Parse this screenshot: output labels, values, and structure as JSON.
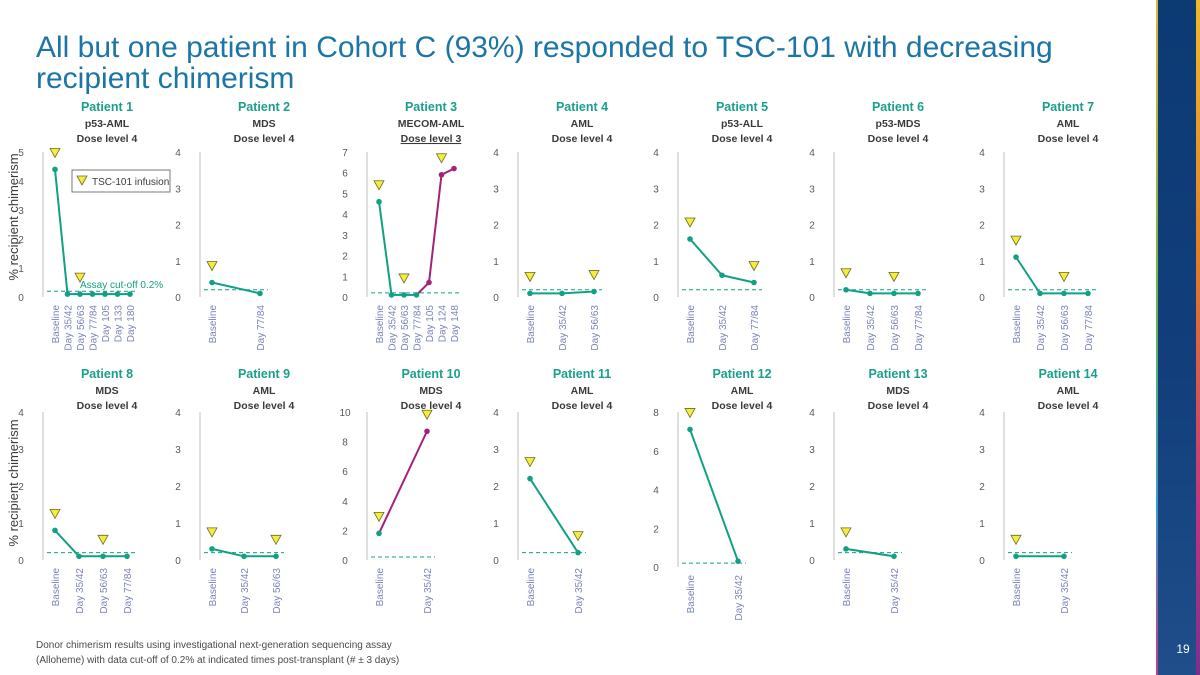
{
  "slide": {
    "title": "All but one patient in Cohort C (93%) responded to TSC-101 with decreasing recipient chimerism",
    "footnote_line1": "Donor chimerism results using investigational next-generation sequencing assay",
    "footnote_line2": "(Alloheme) with data cut-off of 0.2% at indicated times post-transplant (# ± 3 days)",
    "page_number": "19",
    "y_axis_label": "% recipient chimerism",
    "legend_label": "TSC-101 infusion",
    "cutoff_label": "Assay cut-off 0.2%"
  },
  "colors": {
    "title": "#1b75a6",
    "header": "#1b9f8d",
    "line_responder": "#12a085",
    "line_nonresponder": "#a3227a",
    "marker_fill": "#f5ec3c",
    "cutoff": "#12a085",
    "axis": "#bfbfbf",
    "tick_text": "#595959",
    "category_text": "#7a84b8"
  },
  "chart_data": [
    {
      "type": "line",
      "title": "Patient 1",
      "subtitle": "p53-AML",
      "dose": "Dose level 4",
      "categories": [
        "Baseline",
        "Day 35/42",
        "Day 56/63",
        "Day 77/84",
        "Day 105",
        "Day 133",
        "Day 180"
      ],
      "series": [
        {
          "values": [
            4.4,
            0.1,
            0.1,
            0.1,
            0.1,
            0.1,
            0.1
          ]
        }
      ],
      "ylim": [
        0,
        5
      ],
      "yticks": [
        "0",
        "1",
        "2",
        "3",
        "4",
        "5"
      ],
      "infusions": [
        0,
        2
      ],
      "cutoff": 0.2
    },
    {
      "type": "line",
      "title": "Patient 2",
      "subtitle": "MDS",
      "dose": "Dose level 4",
      "categories": [
        "Baseline",
        "Day 77/84"
      ],
      "series": [
        {
          "values": [
            0.4,
            0.1
          ]
        }
      ],
      "ylim": [
        0,
        4
      ],
      "yticks": [
        "0",
        "1",
        "2",
        "3",
        "4"
      ],
      "infusions": [
        0
      ],
      "cutoff": 0.2
    },
    {
      "type": "line",
      "title": "Patient 3",
      "subtitle": "MECOM-AML",
      "dose": "Dose level 3",
      "categories": [
        "Baseline",
        "Day 35/42",
        "Day 56/63",
        "Day 77/84",
        "Day 105",
        "Day 124",
        "Day 148"
      ],
      "series": [
        {
          "values": [
            4.6,
            0.1,
            0.1,
            0.1,
            0.7,
            5.9,
            6.2
          ]
        }
      ],
      "ylim": [
        0,
        7
      ],
      "yticks": [
        "0",
        "1",
        "2",
        "3",
        "4",
        "5",
        "6",
        "7"
      ],
      "infusions": [
        0,
        2,
        5
      ],
      "cutoff": 0.2,
      "nonresponder_from": 3
    },
    {
      "type": "line",
      "title": "Patient 4",
      "subtitle": "AML",
      "dose": "Dose level 4",
      "categories": [
        "Baseline",
        "Day 35/42",
        "Day 56/63"
      ],
      "series": [
        {
          "values": [
            0.1,
            0.1,
            0.15
          ]
        }
      ],
      "ylim": [
        0,
        4
      ],
      "yticks": [
        "0",
        "1",
        "2",
        "3",
        "4"
      ],
      "infusions": [
        0,
        2
      ],
      "cutoff": 0.2
    },
    {
      "type": "line",
      "title": "Patient 5",
      "subtitle": "p53-ALL",
      "dose": "Dose level 4",
      "categories": [
        "Baseline",
        "Day 35/42",
        "Day 77/84"
      ],
      "series": [
        {
          "values": [
            1.6,
            0.6,
            0.4
          ]
        }
      ],
      "ylim": [
        0,
        4
      ],
      "yticks": [
        "0",
        "1",
        "2",
        "3",
        "4"
      ],
      "infusions": [
        0,
        2
      ],
      "cutoff": 0.2
    },
    {
      "type": "line",
      "title": "Patient 6",
      "subtitle": "p53-MDS",
      "dose": "Dose level 4",
      "categories": [
        "Baseline",
        "Day 35/42",
        "Day 56/63",
        "Day 77/84"
      ],
      "series": [
        {
          "values": [
            0.2,
            0.1,
            0.1,
            0.1
          ]
        }
      ],
      "ylim": [
        0,
        4
      ],
      "yticks": [
        "0",
        "1",
        "2",
        "3",
        "4"
      ],
      "infusions": [
        0,
        2
      ],
      "cutoff": 0.2
    },
    {
      "type": "line",
      "title": "Patient 7",
      "subtitle": "AML",
      "dose": "Dose level 4",
      "categories": [
        "Baseline",
        "Day 35/42",
        "Day 56/63",
        "Day 77/84"
      ],
      "series": [
        {
          "values": [
            1.1,
            0.1,
            0.1,
            0.1
          ]
        }
      ],
      "ylim": [
        0,
        4
      ],
      "yticks": [
        "0",
        "1",
        "2",
        "3",
        "4"
      ],
      "infusions": [
        0,
        2
      ],
      "cutoff": 0.2
    },
    {
      "type": "line",
      "title": "Patient 8",
      "subtitle": "MDS",
      "dose": "Dose level 4",
      "categories": [
        "Baseline",
        "Day 35/42",
        "Day 56/63",
        "Day 77/84"
      ],
      "series": [
        {
          "values": [
            0.8,
            0.1,
            0.1,
            0.1
          ]
        }
      ],
      "ylim": [
        0,
        4
      ],
      "yticks": [
        "0",
        "1",
        "2",
        "3",
        "4"
      ],
      "infusions": [
        0,
        2
      ],
      "cutoff": 0.2
    },
    {
      "type": "line",
      "title": "Patient 9",
      "subtitle": "AML",
      "dose": "Dose level 4",
      "categories": [
        "Baseline",
        "Day 35/42",
        "Day 56/63"
      ],
      "series": [
        {
          "values": [
            0.3,
            0.1,
            0.1
          ]
        }
      ],
      "ylim": [
        0,
        4
      ],
      "yticks": [
        "0",
        "1",
        "2",
        "3",
        "4"
      ],
      "infusions": [
        0,
        2
      ],
      "cutoff": 0.2
    },
    {
      "type": "line",
      "title": "Patient 10",
      "subtitle": "MDS",
      "dose": "Dose level 4",
      "categories": [
        "Baseline",
        "Day 35/42"
      ],
      "series": [
        {
          "values": [
            1.8,
            8.7
          ]
        }
      ],
      "ylim": [
        0,
        10
      ],
      "yticks": [
        "0",
        "2",
        "4",
        "6",
        "8",
        "10"
      ],
      "infusions": [
        0,
        1
      ],
      "cutoff": 0.2,
      "nonresponder_from": 0
    },
    {
      "type": "line",
      "title": "Patient 11",
      "subtitle": "AML",
      "dose": "Dose level 4",
      "categories": [
        "Baseline",
        "Day 35/42"
      ],
      "series": [
        {
          "values": [
            2.2,
            0.2
          ]
        }
      ],
      "ylim": [
        0,
        4
      ],
      "yticks": [
        "0",
        "1",
        "2",
        "3",
        "4"
      ],
      "infusions": [
        0,
        1
      ],
      "cutoff": 0.2
    },
    {
      "type": "line",
      "title": "Patient 12",
      "subtitle": "AML",
      "dose": "Dose level 4",
      "categories": [
        "Baseline",
        "Day 35/42"
      ],
      "series": [
        {
          "values": [
            7.1,
            0.3
          ]
        }
      ],
      "ylim": [
        0,
        8
      ],
      "yticks": [
        "0",
        "2",
        "4",
        "6",
        "8"
      ],
      "infusions": [
        0
      ],
      "cutoff": 0.2
    },
    {
      "type": "line",
      "title": "Patient 13",
      "subtitle": "MDS",
      "dose": "Dose level 4",
      "categories": [
        "Baseline",
        "Day 35/42"
      ],
      "series": [
        {
          "values": [
            0.3,
            0.1
          ]
        }
      ],
      "ylim": [
        0,
        4
      ],
      "yticks": [
        "0",
        "1",
        "2",
        "3",
        "4"
      ],
      "infusions": [
        0
      ],
      "cutoff": 0.2
    },
    {
      "type": "line",
      "title": "Patient 14",
      "subtitle": "AML",
      "dose": "Dose level 4",
      "categories": [
        "Baseline",
        "Day 35/42"
      ],
      "series": [
        {
          "values": [
            0.1,
            0.1
          ]
        }
      ],
      "ylim": [
        0,
        4
      ],
      "yticks": [
        "0",
        "1",
        "2",
        "3",
        "4"
      ],
      "infusions": [
        0
      ],
      "cutoff": 0.2
    }
  ]
}
